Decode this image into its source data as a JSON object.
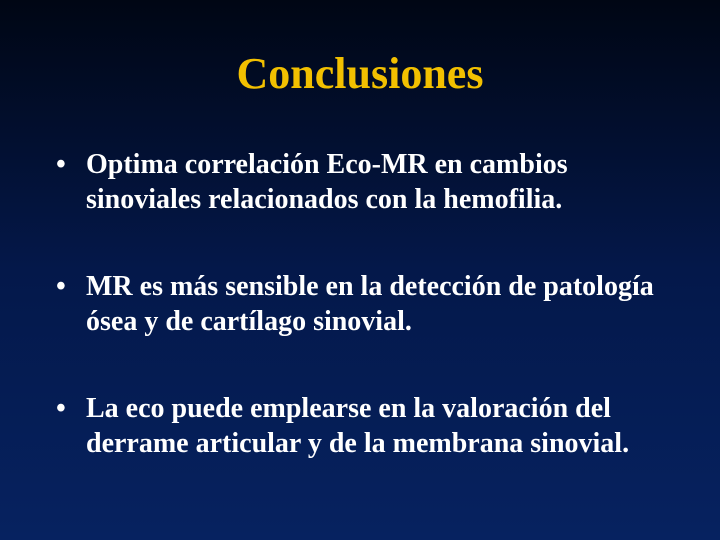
{
  "slide": {
    "title": "Conclusiones",
    "title_color": "#f2c000",
    "title_fontsize": 44,
    "body_color": "#ffffff",
    "body_fontsize": 28,
    "background_gradient_top": "#000614",
    "background_gradient_mid": "#04184a",
    "background_gradient_bottom": "#062260",
    "bullets": [
      "Optima correlación Eco-MR en cambios sinoviales relacionados con la hemofilia.",
      "MR es más sensible en la detección de patología ósea y de cartílago sinovial.",
      "La eco puede emplearse en la valoración del derrame articular y de la membrana sinovial."
    ]
  }
}
